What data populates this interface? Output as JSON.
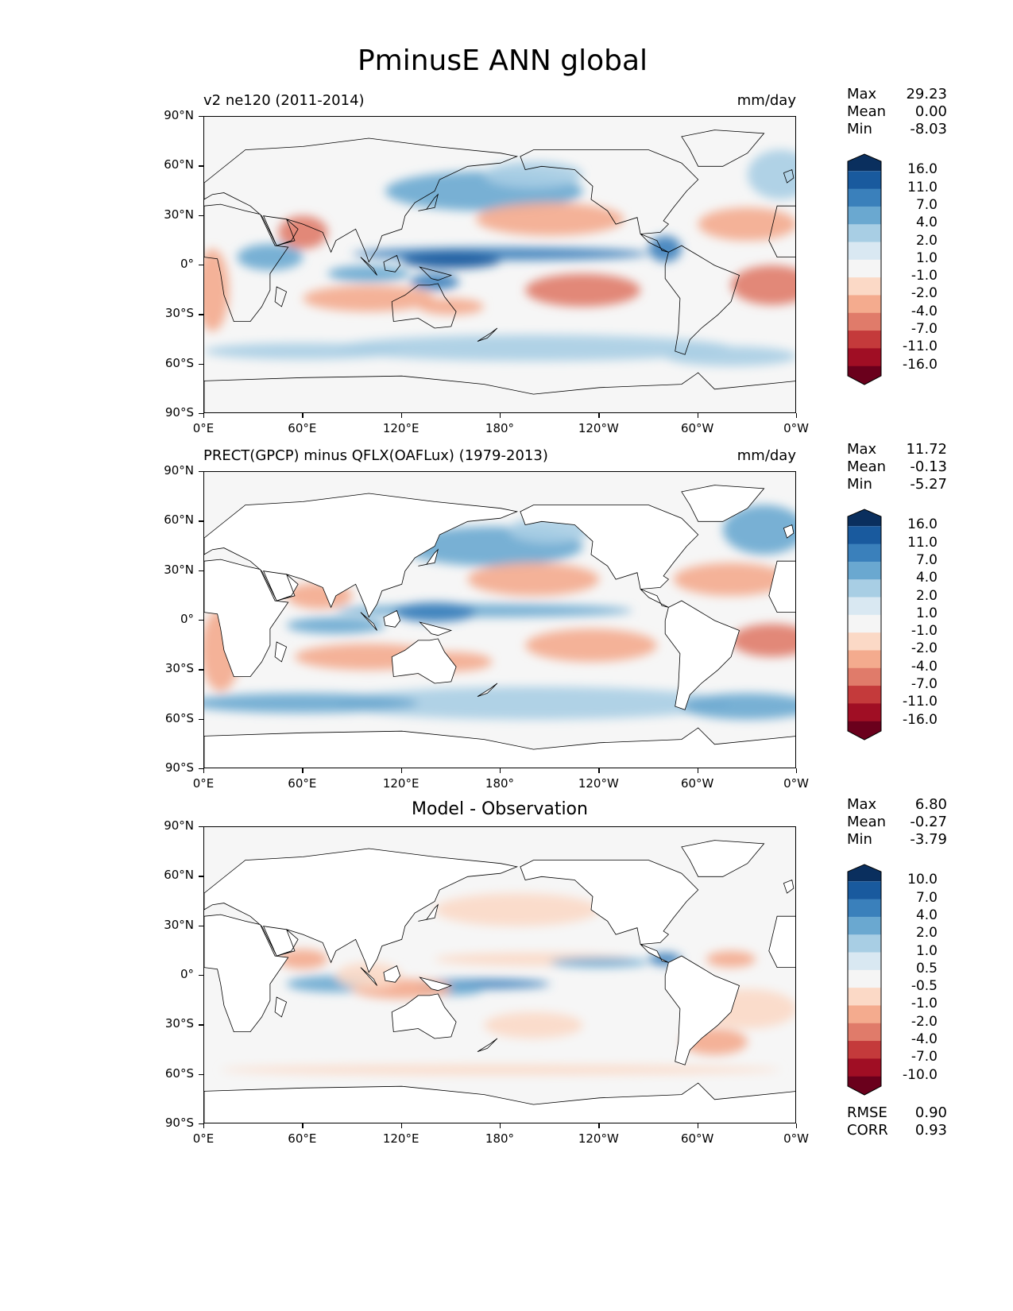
{
  "figure": {
    "title": "PminusE ANN global"
  },
  "lat_ticks": [
    "90°N",
    "60°N",
    "30°N",
    "0°",
    "30°S",
    "60°S",
    "90°S"
  ],
  "lon_ticks": [
    "0°E",
    "60°E",
    "120°E",
    "180°",
    "120°W",
    "60°W",
    "0°W"
  ],
  "panels": [
    {
      "id": "test",
      "left_title": "v2 ne120 (2011-2014)",
      "right_title": "mm/day",
      "center_title": "",
      "stats": [
        {
          "label": "Max",
          "value": "29.23"
        },
        {
          "label": "Mean",
          "value": "0.00"
        },
        {
          "label": "Min",
          "value": "-8.03"
        }
      ],
      "colorbar_labels": [
        "16.0",
        "11.0",
        "7.0",
        "4.0",
        "2.0",
        "1.0",
        "-1.0",
        "-2.0",
        "-4.0",
        "-7.0",
        "-11.0",
        "-16.0"
      ]
    },
    {
      "id": "reference",
      "left_title": "PRECT(GPCP) minus QFLX(OAFLux) (1979-2013)",
      "right_title": "mm/day",
      "center_title": "",
      "stats": [
        {
          "label": "Max",
          "value": "11.72"
        },
        {
          "label": "Mean",
          "value": "-0.13"
        },
        {
          "label": "Min",
          "value": "-5.27"
        }
      ],
      "colorbar_labels": [
        "16.0",
        "11.0",
        "7.0",
        "4.0",
        "2.0",
        "1.0",
        "-1.0",
        "-2.0",
        "-4.0",
        "-7.0",
        "-11.0",
        "-16.0"
      ]
    },
    {
      "id": "difference",
      "left_title": "",
      "right_title": "",
      "center_title": "Model - Observation",
      "stats": [
        {
          "label": "Max",
          "value": "6.80"
        },
        {
          "label": "Mean",
          "value": "-0.27"
        },
        {
          "label": "Min",
          "value": "-3.79"
        }
      ],
      "colorbar_labels": [
        "10.0",
        "7.0",
        "4.0",
        "2.0",
        "1.0",
        "0.5",
        "-0.5",
        "-1.0",
        "-2.0",
        "-4.0",
        "-7.0",
        "-10.0"
      ],
      "metrics": [
        {
          "label": "RMSE",
          "value": "0.90"
        },
        {
          "label": "CORR",
          "value": "0.93"
        }
      ]
    }
  ],
  "colors": {
    "colorbar": [
      "#6a001c",
      "#a00e24",
      "#c43a3b",
      "#e07b6a",
      "#f4ab8e",
      "#fbd9c6",
      "#f5f5f5",
      "#d9e8f2",
      "#a8cee4",
      "#6aa8d0",
      "#3a80bb",
      "#195a9e",
      "#0a2f5e"
    ],
    "land": "#ffffff",
    "ocean_neutral": "#f6f6f6"
  }
}
